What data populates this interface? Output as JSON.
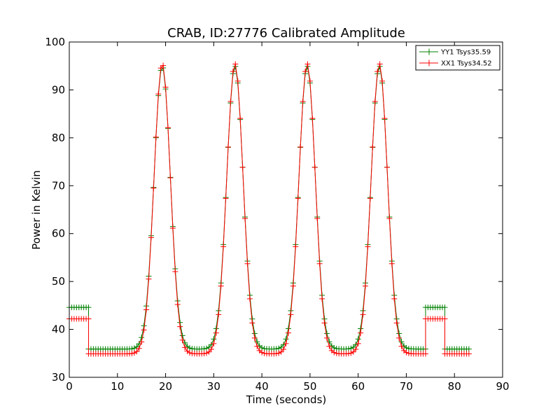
{
  "chart_data": {
    "type": "line",
    "title": "CRAB, ID:27776 Calibrated Amplitude",
    "xlabel": "Time (seconds)",
    "ylabel": "Power in Kelvin",
    "xlim": [
      0,
      90
    ],
    "ylim": [
      30,
      100
    ],
    "x_ticks": [
      "0",
      "10",
      "20",
      "30",
      "40",
      "50",
      "60",
      "70",
      "80",
      "90"
    ],
    "y_ticks": [
      "30",
      "40",
      "50",
      "60",
      "70",
      "80",
      "90",
      "100"
    ],
    "grid": false,
    "legend_position": "top-right",
    "marker": "+",
    "sample_interval_seconds": 0.5,
    "series": [
      {
        "name": "YY1 Tsys35.59",
        "color": "#008000",
        "segments": [
          {
            "start": 0,
            "end": 4,
            "level": 44.6
          },
          {
            "start": 4,
            "end": 74,
            "level": 35.9,
            "peaks": [
              {
                "center": 19.3,
                "peak": 95.0,
                "width": 1.7
              },
              {
                "center": 34.4,
                "peak": 95.0,
                "width": 1.7
              },
              {
                "center": 49.4,
                "peak": 95.0,
                "width": 1.7
              },
              {
                "center": 64.4,
                "peak": 95.0,
                "width": 1.7
              }
            ]
          },
          {
            "start": 74,
            "end": 78,
            "level": 44.6
          },
          {
            "start": 78,
            "end": 83,
            "level": 35.9
          }
        ]
      },
      {
        "name": "XX1 Tsys34.52",
        "color": "#ff0000",
        "segments": [
          {
            "start": 0,
            "end": 4,
            "level": 42.2
          },
          {
            "start": 4,
            "end": 74,
            "level": 34.9,
            "peaks": [
              {
                "center": 19.3,
                "peak": 95.5,
                "width": 1.7
              },
              {
                "center": 34.4,
                "peak": 95.5,
                "width": 1.7
              },
              {
                "center": 49.4,
                "peak": 95.5,
                "width": 1.7
              },
              {
                "center": 64.4,
                "peak": 95.5,
                "width": 1.7
              }
            ]
          },
          {
            "start": 74,
            "end": 78,
            "level": 42.2
          },
          {
            "start": 78,
            "end": 83,
            "level": 34.9
          }
        ]
      }
    ]
  }
}
